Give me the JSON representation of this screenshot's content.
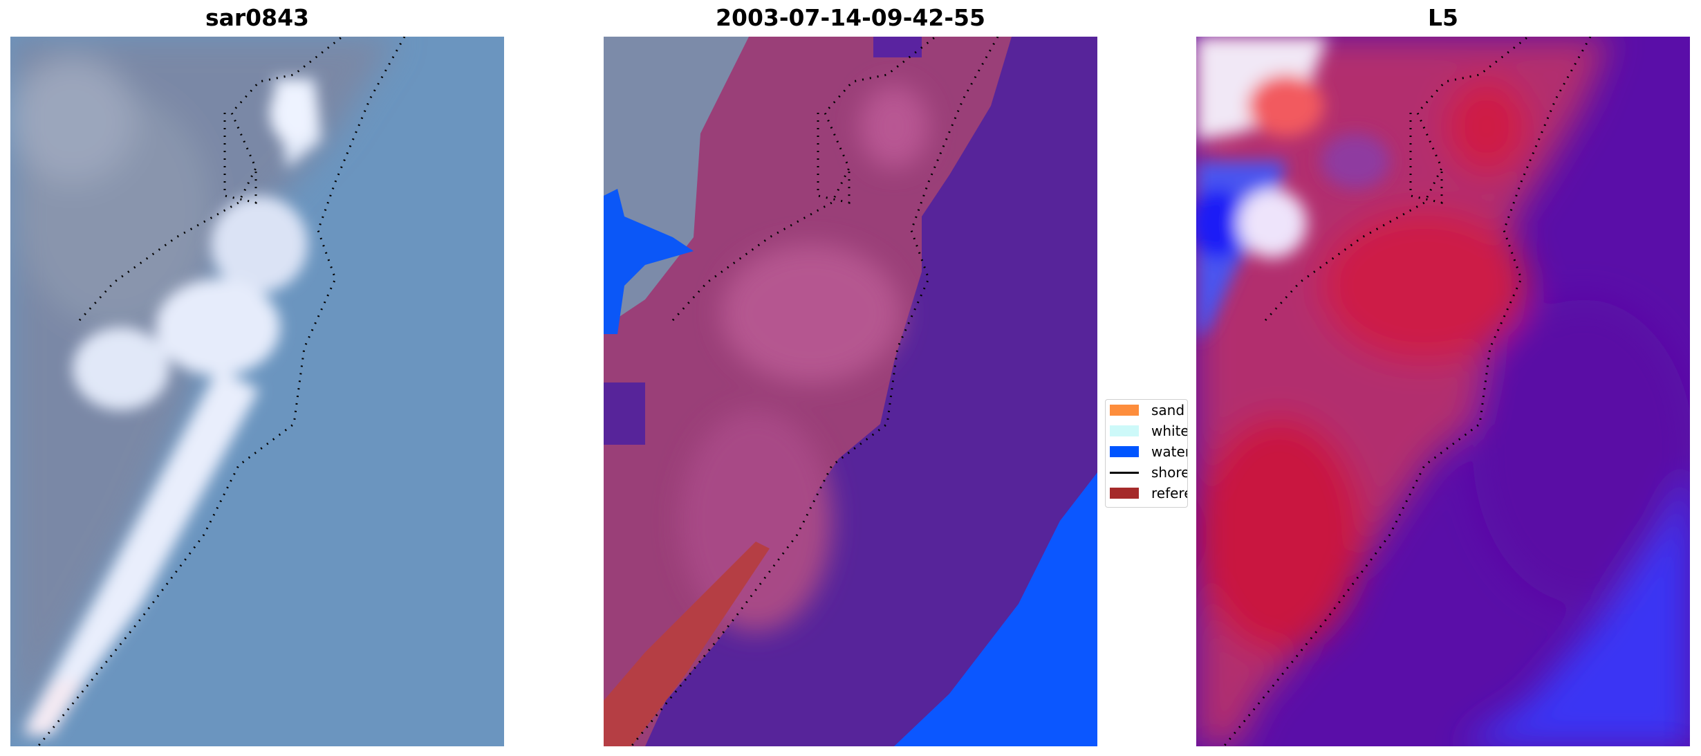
{
  "panels": [
    {
      "id": "rgb",
      "title": "sar0843"
    },
    {
      "id": "classified",
      "title": "2003-07-14-09-42-55"
    },
    {
      "id": "index",
      "title": "L5"
    }
  ],
  "legend": {
    "items": [
      {
        "label": "sand",
        "kind": "patch",
        "color": "#fd8d3c"
      },
      {
        "label": "whitewater",
        "kind": "patch",
        "color": "#cdf9f9"
      },
      {
        "label": "water",
        "kind": "patch",
        "color": "#0055ff"
      },
      {
        "label": "shoreline",
        "kind": "line",
        "color": "#000000"
      },
      {
        "label": "reference",
        "kind": "patch",
        "color": "#a52a2a"
      }
    ]
  },
  "colors": {
    "sea": "#6691bd",
    "land": "#7e8ba8",
    "surf": "#e6eefc",
    "water_class": "#0055ff",
    "purple_overlay": "#562297",
    "magenta_overlay": "#a8467e",
    "reference_red": "#b3393f",
    "index_red": "#c41c46",
    "index_purple": "#4f0b9e",
    "index_blue": "#2a2dff"
  }
}
